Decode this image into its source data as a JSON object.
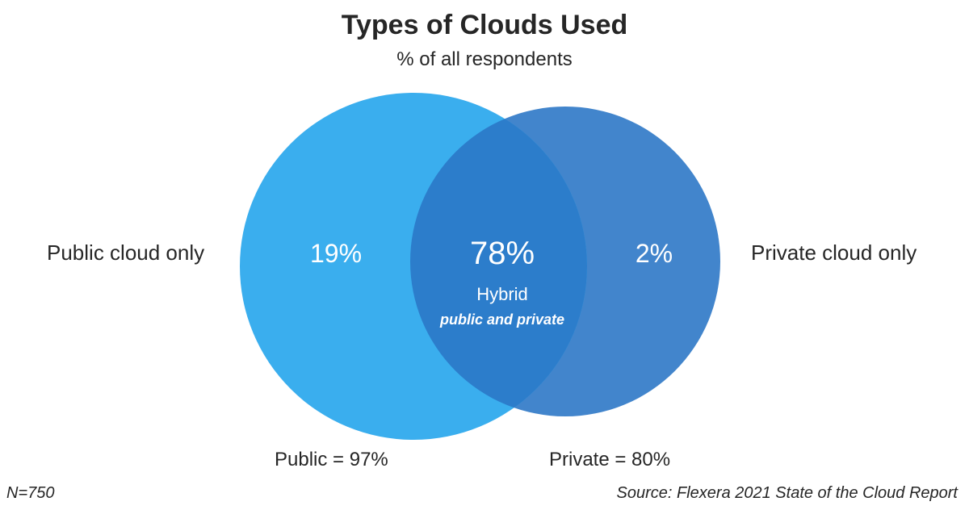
{
  "chart_data": {
    "type": "venn",
    "title": "Types of Clouds Used",
    "subtitle": "% of all respondents",
    "sets": [
      {
        "name": "Public",
        "total_label": "Public = 97%",
        "total": 97,
        "only_label": "Public cloud only",
        "only_value": "19%",
        "color": "#3aaeee"
      },
      {
        "name": "Private",
        "total_label": "Private = 80%",
        "total": 80,
        "only_label": "Private cloud only",
        "only_value": "2%",
        "color": "#4285cc"
      }
    ],
    "intersection": {
      "value": "78%",
      "label": "Hybrid",
      "sublabel": "public and private",
      "color": "#2c7dcb"
    },
    "footnote_left": "N=750",
    "footnote_right": "Source: Flexera 2021 State of the Cloud Report"
  }
}
